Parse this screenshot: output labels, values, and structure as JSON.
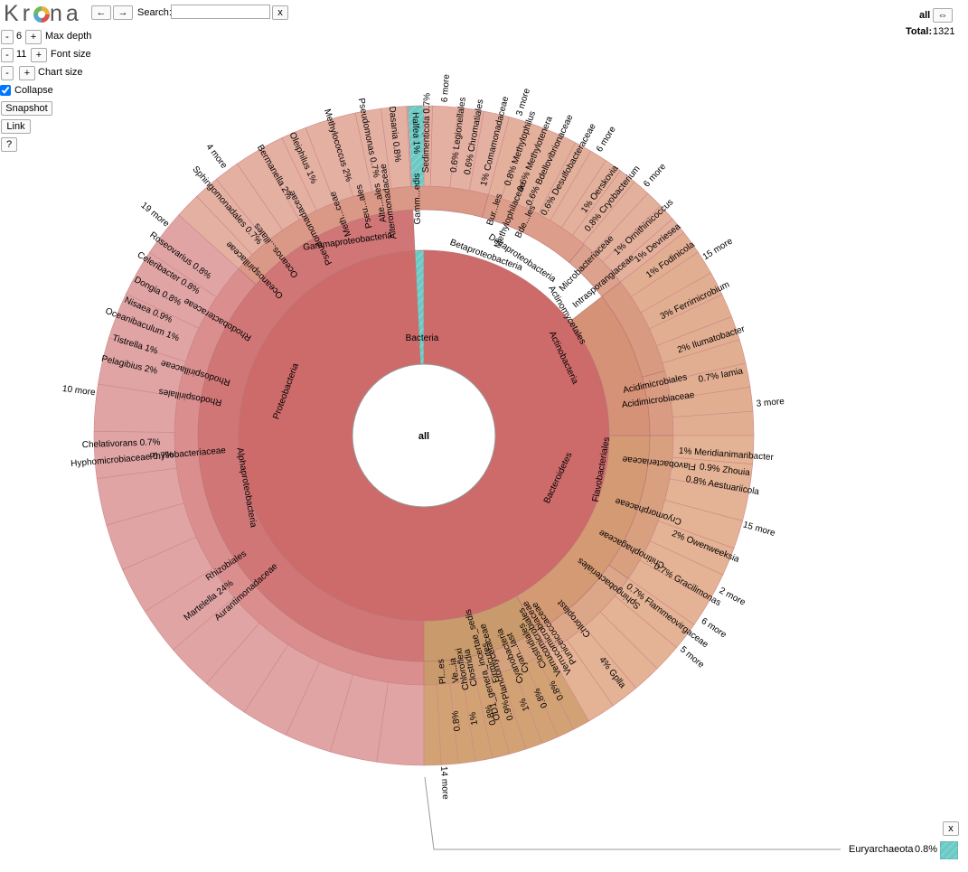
{
  "app": {
    "logo_letters": [
      "K",
      "r",
      "n",
      "a"
    ]
  },
  "toolbar": {
    "back": "←",
    "forward": "→",
    "search_label": "Search:",
    "search_value": "",
    "search_clear": "x",
    "max_depth": {
      "minus": "-",
      "value": "6",
      "plus": "+",
      "label": "Max depth"
    },
    "font_size": {
      "minus": "-",
      "value": "11",
      "plus": "+",
      "label": "Font size"
    },
    "chart_size": {
      "minus": "-",
      "plus": "+",
      "label": "Chart size"
    },
    "collapse_label": "Collapse",
    "collapse_checked": true,
    "snapshot": "Snapshot",
    "link": "Link",
    "help": "?"
  },
  "top_right": {
    "current": "all",
    "expand": "⇔",
    "total_label": "Total:",
    "total_value": "1321"
  },
  "details": {
    "close": "x",
    "name": "Euryarchaeota",
    "pct": "0.8%",
    "swatch_color": "#6cc9c4"
  },
  "chart_data": {
    "type": "sunburst",
    "center_label": "all",
    "colors": {
      "bacteria_red": "#cd6a6a",
      "alpha_pink": "#d99292",
      "beta_gamma": "#d99a86",
      "actino_bactero": "#d49a6e",
      "archaea": "#6cc9c4",
      "minor_brown": "#c89a6a"
    },
    "rings": [
      [
        {
          "name": "Bacteria",
          "a0": 0,
          "a1": 357.2,
          "color": "#cd6a6a"
        },
        {
          "name": "",
          "a0": 357.2,
          "a1": 360,
          "color": "#6cc9c4",
          "hatch": true
        }
      ],
      [
        {
          "name": "Proteobacteria",
          "a0": 180,
          "a1": 357.2,
          "color": "#d07676"
        },
        {
          "name": "Actinobacteria",
          "a0": 52,
          "a1": 90,
          "color": "#d69276"
        },
        {
          "name": "Bacteroidetes",
          "a0": 90,
          "a1": 150,
          "color": "#d49a74"
        },
        {
          "name": "",
          "a0": 150,
          "a1": 180,
          "color": "#c99a6b"
        }
      ],
      [
        {
          "name": "Alphaproteobacteria",
          "a0": 180,
          "a1": 312,
          "color": "#da8e8e"
        },
        {
          "name": "Gammaproteobacteria",
          "a0": 312,
          "a1": 15,
          "color": "#da9886"
        },
        {
          "name": "Betaproteobacteria",
          "a0": 15,
          "a1": 40,
          "color": "#dc9e8a"
        },
        {
          "name": "Deltaproteobacteria",
          "a0": 40,
          "a1": 52,
          "color": "#dca28e"
        },
        {
          "name": "Actinomycetales",
          "a0": 52,
          "a1": 75,
          "color": "#d89a80"
        },
        {
          "name": "Acidimicrobiia",
          "a0": 75,
          "a1": 90,
          "color": "#d99c82"
        },
        {
          "name": "Flavobacteriia",
          "a0": 90,
          "a1": 125,
          "color": "#d9a080"
        },
        {
          "name": "Cytophagia",
          "a0": 125,
          "a1": 150,
          "color": "#dca688"
        },
        {
          "name": "Cyanobacteria",
          "a0": 150,
          "a1": 162,
          "color": "#d4a27c"
        },
        {
          "name": "Firmicutes",
          "a0": 162,
          "a1": 172,
          "color": "#cfa078"
        },
        {
          "name": "",
          "a0": 172,
          "a1": 180,
          "color": "#c99a6b",
          "hatch": true
        }
      ]
    ],
    "labels": {
      "ring0": [
        {
          "text": "Bacteria"
        }
      ],
      "ring1": [
        {
          "text": "Proteobacteria"
        },
        {
          "text": "Actinobacteria"
        },
        {
          "text": "Bacteroidetes"
        }
      ],
      "ring2": [
        {
          "text": "Alphaproteobacteria"
        },
        {
          "text": "Gammaproteobacteria"
        },
        {
          "text": "Betaproteobacteria"
        },
        {
          "text": "Deltaproteobacteria"
        },
        {
          "text": "Actinomycetales"
        },
        {
          "text": "Flavobacteriales"
        }
      ],
      "outer": [
        {
          "text": "Martelella",
          "pct": "24%"
        },
        {
          "text": "Pelagibius",
          "pct": "2%"
        },
        {
          "text": "Tistrella",
          "pct": "1%"
        },
        {
          "text": "Oceanibaculum",
          "pct": "1%"
        },
        {
          "text": "Nisaea",
          "pct": "0.9%"
        },
        {
          "text": "Dongia",
          "pct": "0.8%"
        },
        {
          "text": "Celeribacter",
          "pct": "0.8%"
        },
        {
          "text": "Roseovarius",
          "pct": "0.8%"
        },
        {
          "text": "19 more",
          "pct": ""
        },
        {
          "text": "Sphingomonadales",
          "pct": "0.7%"
        },
        {
          "text": "4 more",
          "pct": ""
        },
        {
          "text": "Bermanella",
          "pct": "2%"
        },
        {
          "text": "Oleiphilus",
          "pct": "1%"
        },
        {
          "text": "Methylococcus",
          "pct": "2%"
        },
        {
          "text": "Pseudomonas",
          "pct": "0.7%"
        },
        {
          "text": "Dasania",
          "pct": "0.8%"
        },
        {
          "text": "Halfea",
          "pct": "1%"
        },
        {
          "text": "Sedimenticola",
          "pct": "0.7%"
        },
        {
          "text": "6 more",
          "pct": ""
        },
        {
          "text": "Legionellales",
          "pct": "0.6%"
        },
        {
          "text": "Chromatiales",
          "pct": "0.6%"
        },
        {
          "text": "Comamonadaceae",
          "pct": "1%"
        },
        {
          "text": "3 more",
          "pct": ""
        },
        {
          "text": "Methylophilus",
          "pct": "0.8%"
        },
        {
          "text": "Methylotenera",
          "pct": "0.6%"
        },
        {
          "text": "Bdellovibrionaceae",
          "pct": "0.6%"
        },
        {
          "text": "Desulfobacteraceae",
          "pct": "0.6%"
        },
        {
          "text": "6 more",
          "pct": ""
        },
        {
          "text": "Oerskovia",
          "pct": "1%"
        },
        {
          "text": "Cryobacterium",
          "pct": "0.8%"
        },
        {
          "text": "6 more",
          "pct": ""
        },
        {
          "text": "Ornithinicoccus",
          "pct": "1%"
        },
        {
          "text": "Devriesea",
          "pct": "1%"
        },
        {
          "text": "Fodinicola",
          "pct": "1%"
        },
        {
          "text": "15 more",
          "pct": ""
        },
        {
          "text": "Ferrimicrobium",
          "pct": "3%"
        },
        {
          "text": "Ilumatobacter",
          "pct": "2%"
        },
        {
          "text": "Iamia",
          "pct": "0.7%"
        },
        {
          "text": "3 more",
          "pct": ""
        },
        {
          "text": "Meridianimaribacter",
          "pct": "1%"
        },
        {
          "text": "Zhouia",
          "pct": "0.9%"
        },
        {
          "text": "Aestuariicola",
          "pct": "0.8%"
        },
        {
          "text": "15 more",
          "pct": ""
        },
        {
          "text": "Owenweeksia",
          "pct": "2%"
        },
        {
          "text": "2 more",
          "pct": ""
        },
        {
          "text": "Gracilimonas",
          "pct": "0.7%"
        },
        {
          "text": "6 more",
          "pct": ""
        },
        {
          "text": "Flammeovirgaceae",
          "pct": "0.7%"
        },
        {
          "text": "5 more",
          "pct": ""
        },
        {
          "text": "Gplla",
          "pct": "4%"
        },
        {
          "text": "14 more",
          "pct": ""
        },
        {
          "text": "Hyphomicrobiaceae",
          "pct": "0.7%"
        },
        {
          "text": "Chelativorans",
          "pct": "0.7%"
        },
        {
          "text": "10 more",
          "pct": ""
        }
      ],
      "mid": [
        "Rhizobiales",
        "Aurantimonadaceae",
        "Phyllobacteriaceae",
        "Rhodospirillales",
        "Rhodospirillaceae",
        "Rhodobacteraceae",
        "Oceanospirillaceae",
        "Oceanos...illales",
        "Pseudomonadaceae",
        "Alteromonadaceae",
        "Meth...ceae",
        "Alte...ales",
        "Pseu...ales",
        "Gamm...edis",
        "Methylophilaceae",
        "Bur...les",
        "Bde...les",
        "Microbacteriaceae",
        "Intrasporangiaceae",
        "Acidimicrobiales",
        "Acidimicrobiaceae",
        "Flavobacteriaceae",
        "Cryomorphaceae",
        "Chitinophagaceae",
        "Sphingobacteriales",
        "Cyanobacteria",
        "Cyan...last",
        "Firmicutes",
        "Clostridia",
        "Verrucomicrobiales",
        "Chloroflexi",
        "OD1_genera_incertae_sedis",
        "Planctomycetaceae",
        "Clostridiales",
        "Verrucomicrobiaceae",
        "Puniceicoccaceae",
        "Chloroplast",
        "Pl...es",
        "Ve...ia"
      ],
      "mid_pcts": [
        "0.8%",
        "0.8%",
        "1%",
        "0.9%",
        "0.8%",
        "1%",
        "0.8%"
      ]
    }
  }
}
